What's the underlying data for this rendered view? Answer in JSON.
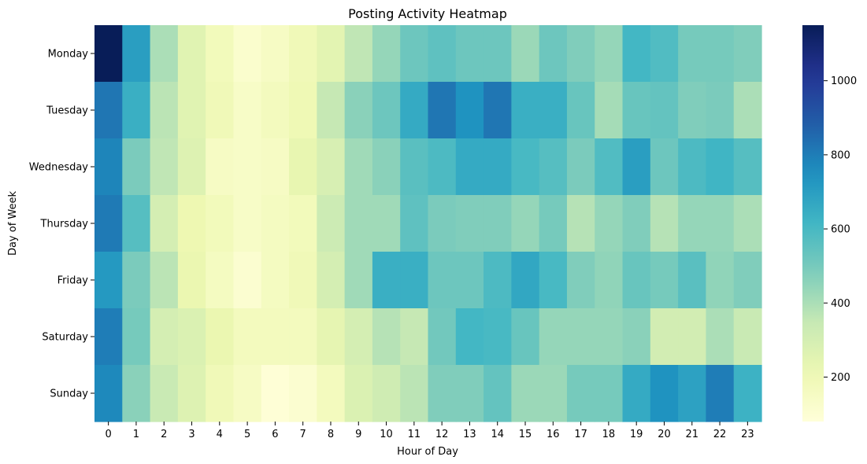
{
  "chart_data": {
    "type": "heatmap",
    "title": "Posting Activity Heatmap",
    "xlabel": "Hour of Day",
    "ylabel": "Day of Week",
    "x_categories": [
      "0",
      "1",
      "2",
      "3",
      "4",
      "5",
      "6",
      "7",
      "8",
      "9",
      "10",
      "11",
      "12",
      "13",
      "14",
      "15",
      "16",
      "17",
      "18",
      "19",
      "20",
      "21",
      "22",
      "23"
    ],
    "y_categories": [
      "Monday",
      "Tuesday",
      "Wednesday",
      "Thursday",
      "Friday",
      "Saturday",
      "Sunday"
    ],
    "values": [
      [
        1150,
        700,
        400,
        260,
        180,
        120,
        150,
        190,
        250,
        360,
        440,
        520,
        550,
        520,
        520,
        430,
        520,
        480,
        440,
        610,
        580,
        500,
        500,
        480
      ],
      [
        820,
        640,
        370,
        260,
        190,
        140,
        170,
        200,
        350,
        460,
        520,
        660,
        820,
        740,
        820,
        640,
        640,
        530,
        410,
        530,
        540,
        480,
        490,
        400
      ],
      [
        780,
        490,
        360,
        270,
        150,
        140,
        150,
        230,
        290,
        420,
        460,
        560,
        590,
        660,
        660,
        600,
        570,
        490,
        580,
        700,
        520,
        590,
        620,
        570
      ],
      [
        810,
        570,
        300,
        210,
        180,
        140,
        160,
        180,
        330,
        420,
        420,
        550,
        490,
        480,
        480,
        440,
        500,
        380,
        440,
        480,
        380,
        440,
        440,
        400
      ],
      [
        720,
        490,
        370,
        220,
        160,
        110,
        160,
        190,
        300,
        420,
        640,
        640,
        520,
        520,
        590,
        670,
        600,
        480,
        450,
        530,
        500,
        560,
        450,
        480
      ],
      [
        800,
        500,
        300,
        280,
        220,
        170,
        170,
        170,
        240,
        300,
        380,
        350,
        510,
        610,
        600,
        530,
        440,
        440,
        440,
        460,
        310,
        310,
        400,
        340
      ],
      [
        770,
        460,
        340,
        270,
        190,
        150,
        90,
        110,
        170,
        280,
        320,
        370,
        480,
        480,
        540,
        430,
        430,
        500,
        500,
        660,
        740,
        690,
        800,
        630
      ]
    ],
    "vmin": 80,
    "vmax": 1150,
    "colormap": "YlGnBu",
    "colorbar": {
      "ticks": [
        200,
        400,
        600,
        800,
        1000
      ]
    },
    "grid": false
  }
}
